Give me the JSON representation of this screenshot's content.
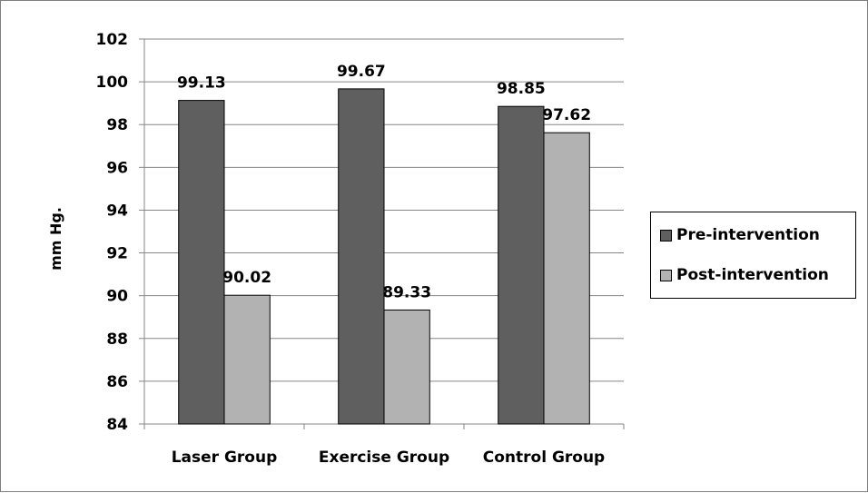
{
  "chart_data": {
    "type": "bar",
    "categories": [
      "Laser Group",
      "Exercise Group",
      "Control Group"
    ],
    "series": [
      {
        "name": "Pre-intervention",
        "values": [
          99.13,
          99.67,
          98.85
        ],
        "labels": [
          "99.13",
          "99.67",
          "98.85"
        ],
        "color": "#5f5f5f"
      },
      {
        "name": "Post-intervention",
        "values": [
          90.02,
          89.33,
          97.62
        ],
        "labels": [
          "90.02",
          "89.33",
          "97.62"
        ],
        "color": "#b2b2b2"
      }
    ],
    "ylabel": "mm Hg.",
    "ylim": [
      84,
      102
    ],
    "yticks": [
      "84",
      "86",
      "88",
      "90",
      "92",
      "94",
      "96",
      "98",
      "100",
      "102"
    ],
    "grid": true,
    "legend_position": "right"
  }
}
